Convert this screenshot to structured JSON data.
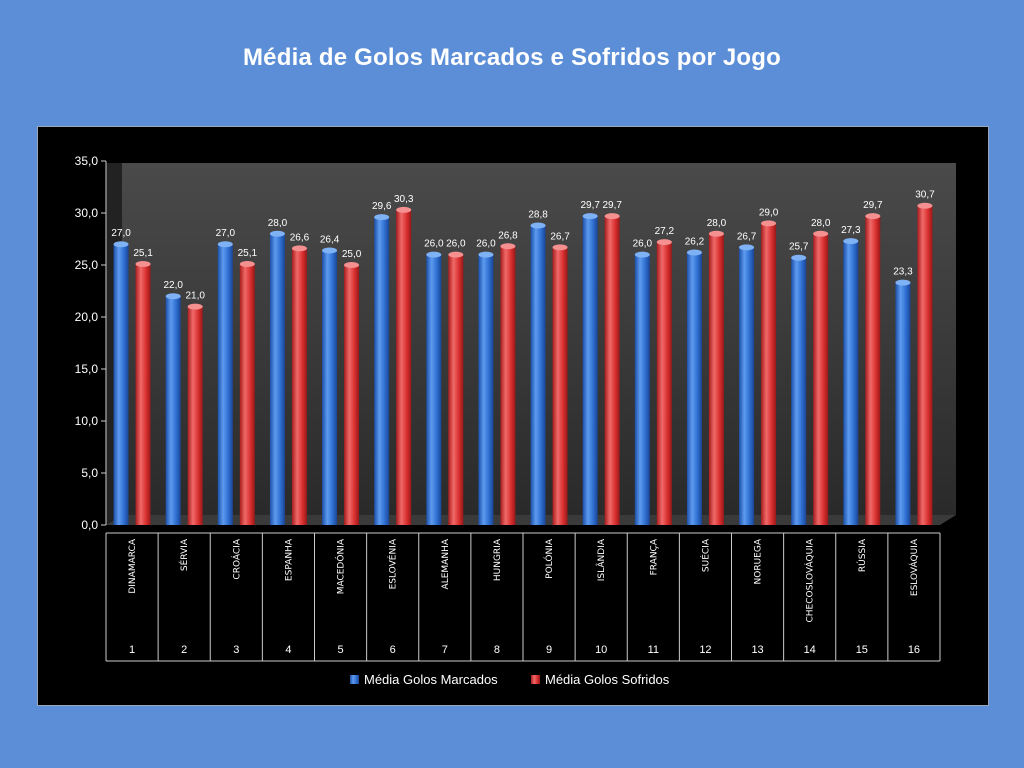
{
  "title": "Média de Golos Marcados e Sofridos por Jogo",
  "colors": {
    "background": "#5b8ed6",
    "panel": "#000000",
    "series_marcados": "#2f6fd0",
    "series_sofridos": "#d93030"
  },
  "chart_data": {
    "type": "bar",
    "categories": [
      "DINAMARCA",
      "SÉRVIA",
      "CROÁCIA",
      "ESPANHA",
      "MACEDÓNIA",
      "ESLOVÉNIA",
      "ALEMANHA",
      "HUNGRIA",
      "POLÓNIA",
      "ISLÂNDIA",
      "FRANÇA",
      "SUÉCIA",
      "NORUEGA",
      "CHECOSLOVÁQUIA",
      "RÚSSIA",
      "ESLOVÁQUIA"
    ],
    "indices": [
      "1",
      "2",
      "3",
      "4",
      "5",
      "6",
      "7",
      "8",
      "9",
      "10",
      "11",
      "12",
      "13",
      "14",
      "15",
      "16"
    ],
    "series": [
      {
        "name": "Média Golos Marcados",
        "values": [
          27.0,
          22.0,
          27.0,
          28.0,
          26.4,
          29.6,
          26.0,
          26.0,
          28.8,
          29.7,
          26.0,
          26.2,
          26.7,
          25.7,
          27.3,
          23.3
        ],
        "labels": [
          "27,0",
          "22,0",
          "27,0",
          "28,0",
          "26,4",
          "29,6",
          "26,0",
          "26,0",
          "28,8",
          "29,7",
          "26,0",
          "26,2",
          "26,7",
          "25,7",
          "27,3",
          "23,3"
        ]
      },
      {
        "name": "Média Golos Sofridos",
        "values": [
          25.1,
          21.0,
          25.1,
          26.6,
          25.0,
          30.3,
          26.0,
          26.8,
          26.7,
          29.7,
          27.2,
          28.0,
          29.0,
          28.0,
          29.7,
          30.7
        ],
        "labels": [
          "25,1",
          "21,0",
          "25,1",
          "26,6",
          "25,0",
          "30,3",
          "26,0",
          "26,8",
          "26,7",
          "29,7",
          "27,2",
          "28,0",
          "29,0",
          "28,0",
          "29,7",
          "30,7"
        ]
      }
    ],
    "yticks": [
      "0,0",
      "5,0",
      "10,0",
      "15,0",
      "20,0",
      "25,0",
      "30,0",
      "35,0"
    ],
    "ylim": [
      0,
      35
    ],
    "legend_position": "bottom",
    "grid": false
  }
}
